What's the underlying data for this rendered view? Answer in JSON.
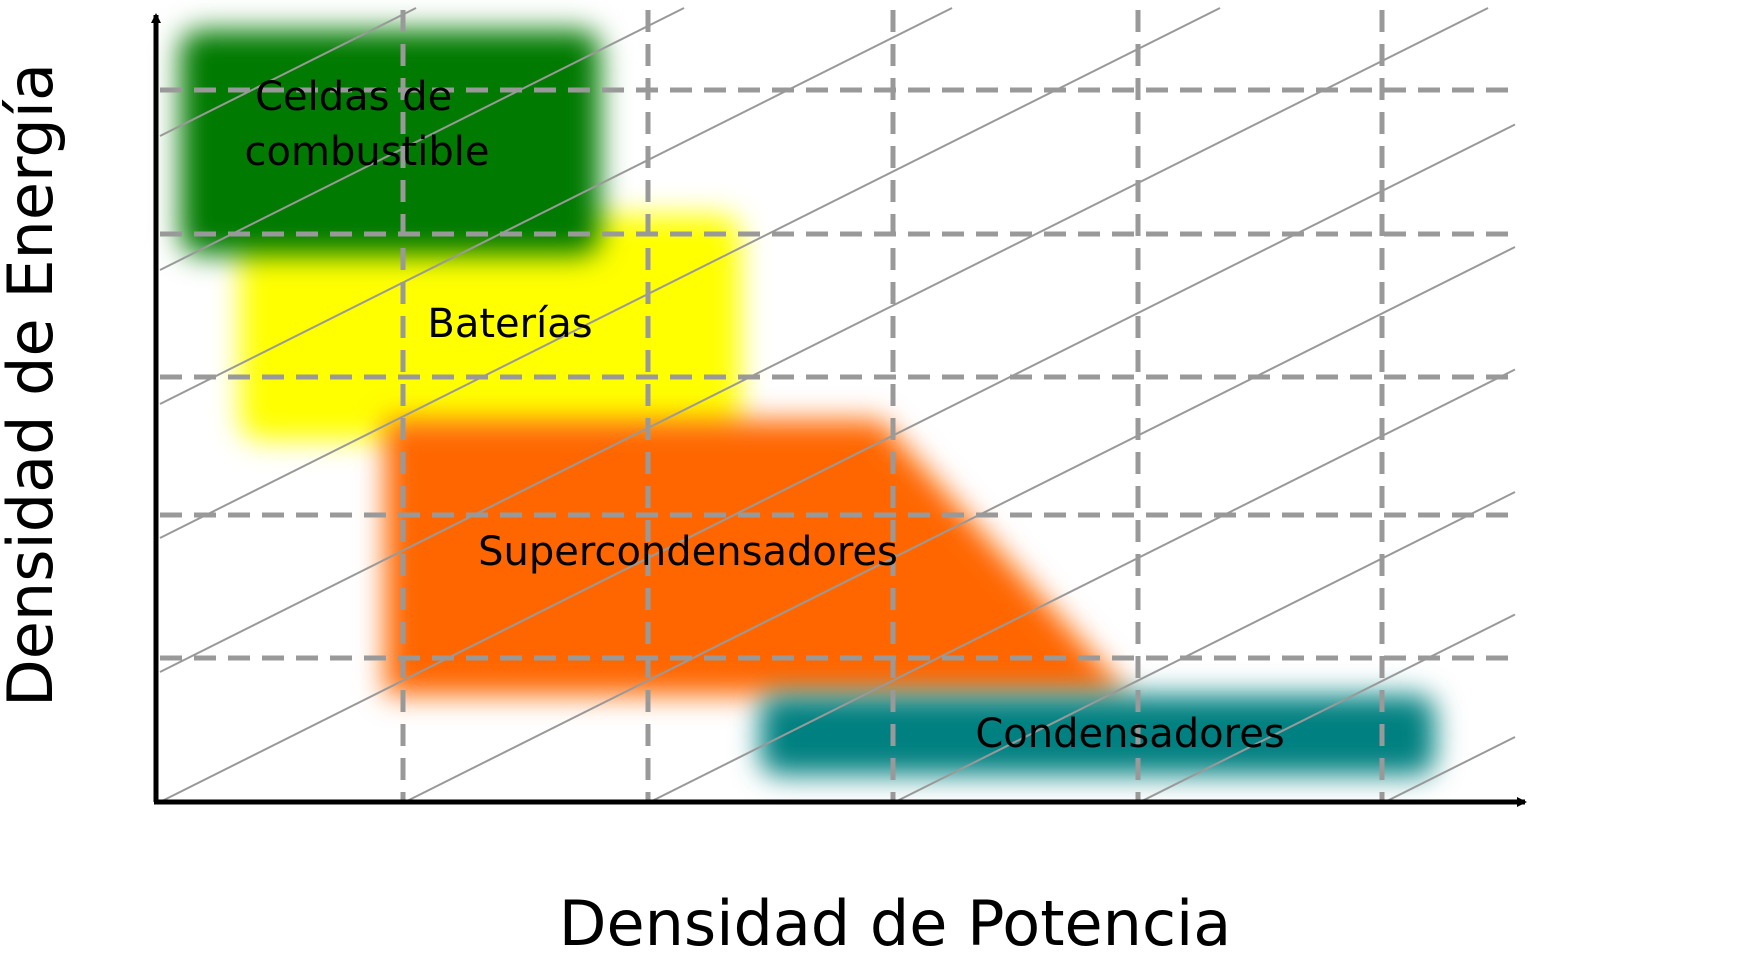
{
  "chart_data": {
    "type": "area",
    "xlabel": "Densidad de Potencia",
    "ylabel": "Densidad de Energía",
    "grid": true,
    "legend": "none",
    "regions": [
      {
        "name": "Celdas de combustible",
        "label_lines": [
          "Celdas de",
          "combustible"
        ],
        "color": "#007a00"
      },
      {
        "name": "Baterías",
        "label_lines": [
          "Baterías"
        ],
        "color": "#ffff00"
      },
      {
        "name": "Supercondensadores",
        "label_lines": [
          "Supercondensadores"
        ],
        "color": "#ff6600"
      },
      {
        "name": "Condensadores",
        "label_lines": [
          "Condensadores"
        ],
        "color": "#008080"
      }
    ]
  },
  "colors": {
    "axis": "#000000",
    "grid": "#999999",
    "diagonal": "#999999"
  }
}
